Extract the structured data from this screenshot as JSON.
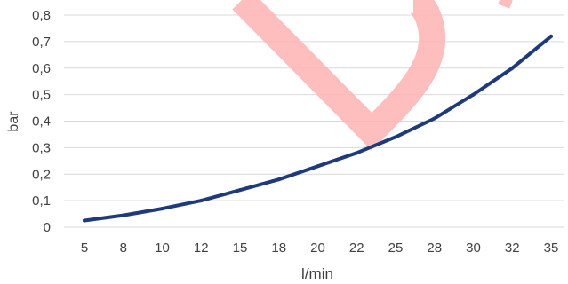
{
  "chart_data": {
    "type": "line",
    "categories": [
      "5",
      "8",
      "10",
      "12",
      "15",
      "18",
      "20",
      "22",
      "25",
      "28",
      "30",
      "32",
      "35"
    ],
    "series": [
      {
        "values": [
          0.025,
          0.045,
          0.07,
          0.1,
          0.14,
          0.18,
          0.23,
          0.28,
          0.34,
          0.41,
          0.5,
          0.6,
          0.72
        ]
      }
    ],
    "title": "",
    "xlabel": "l/min",
    "ylabel": "bar",
    "ylim": [
      0,
      0.8
    ],
    "yticks": [
      "0",
      "0,1",
      "0,2",
      "0,3",
      "0,4",
      "0,5",
      "0,6",
      "0,7",
      "0,8"
    ],
    "grid": "horizontal",
    "line_color": "#1f3a7a",
    "grid_color": "#d9d9d9",
    "watermark_color": "#ffb3b3"
  }
}
